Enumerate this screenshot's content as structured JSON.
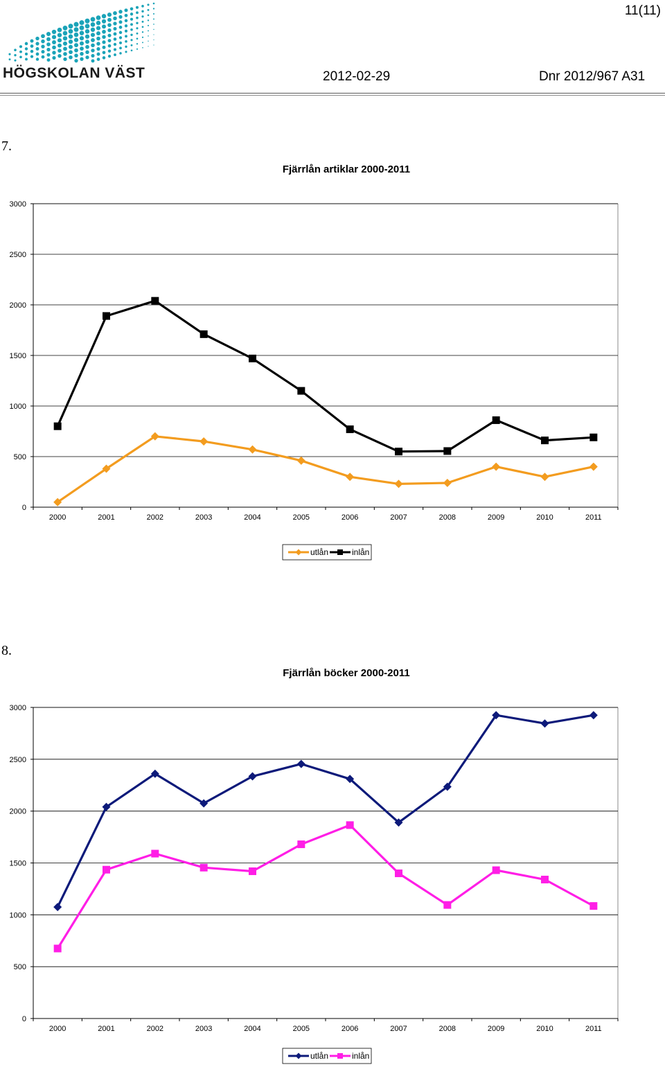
{
  "header": {
    "page_number": "11(11)",
    "logo_text": "HÖGSKOLAN VÄST",
    "date": "2012-02-29",
    "dnr": "Dnr 2012/967 A31"
  },
  "sections": [
    {
      "label": "7."
    },
    {
      "label": "8."
    }
  ],
  "colors": {
    "logo_dots": "#1aa3b8",
    "artiklar_utlan": "#f39c1f",
    "artiklar_inlan": "#000000",
    "bocker_utlan": "#0d1a7a",
    "bocker_inlan": "#ff1ee6"
  },
  "icons": [
    "logo-dot-wave"
  ],
  "chart_data": [
    {
      "type": "line",
      "title": "Fjärrlån artiklar 2000-2011",
      "xlabel": "",
      "ylabel": "",
      "ylim": [
        0,
        3000
      ],
      "yticks": [
        0,
        500,
        1000,
        1500,
        2000,
        2500,
        3000
      ],
      "grid": "horizontal",
      "legend": "bottom-center",
      "categories": [
        "2000",
        "2001",
        "2002",
        "2003",
        "2004",
        "2005",
        "2006",
        "2007",
        "2008",
        "2009",
        "2010",
        "2011"
      ],
      "series": [
        {
          "name": "utlån",
          "marker": "diamond",
          "color": "#f39c1f",
          "values": [
            50,
            380,
            700,
            650,
            570,
            460,
            300,
            230,
            240,
            400,
            300,
            400
          ]
        },
        {
          "name": "inlån",
          "marker": "square",
          "color": "#000000",
          "values": [
            800,
            1890,
            2040,
            1710,
            1470,
            1150,
            770,
            550,
            555,
            860,
            660,
            690
          ]
        }
      ]
    },
    {
      "type": "line",
      "title": "Fjärrlån böcker 2000-2011",
      "xlabel": "",
      "ylabel": "",
      "ylim": [
        0,
        3000
      ],
      "yticks": [
        0,
        500,
        1000,
        1500,
        2000,
        2500,
        3000
      ],
      "grid": "horizontal",
      "legend": "bottom-center",
      "categories": [
        "2000",
        "2001",
        "2002",
        "2003",
        "2004",
        "2005",
        "2006",
        "2007",
        "2008",
        "2009",
        "2010",
        "2011"
      ],
      "series": [
        {
          "name": "utlån",
          "marker": "diamond",
          "color": "#0d1a7a",
          "values": [
            1075,
            2040,
            2360,
            2075,
            2335,
            2455,
            2310,
            1890,
            2235,
            2925,
            2845,
            2925
          ]
        },
        {
          "name": "inlån",
          "marker": "square",
          "color": "#ff1ee6",
          "values": [
            675,
            1435,
            1590,
            1455,
            1420,
            1680,
            1865,
            1400,
            1095,
            1430,
            1340,
            1085
          ]
        }
      ]
    }
  ]
}
